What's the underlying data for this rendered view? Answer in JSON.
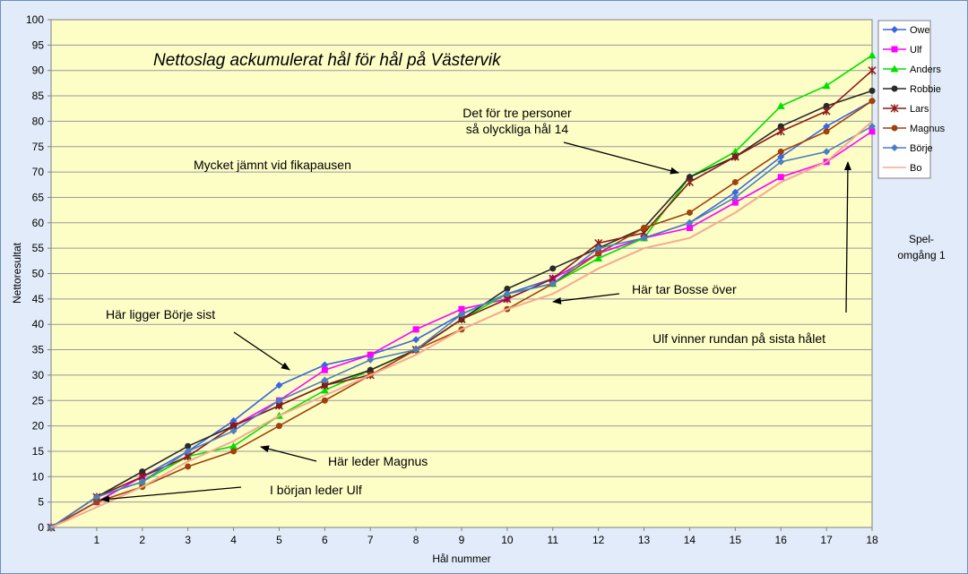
{
  "chart_data": {
    "type": "line",
    "title": "Nettoslag ackumulerat hål för hål på Västervik",
    "xlabel": "Hål nummer",
    "ylabel": "Nettoresultat",
    "x": [
      0,
      1,
      2,
      3,
      4,
      5,
      6,
      7,
      8,
      9,
      10,
      11,
      12,
      13,
      14,
      15,
      16,
      17,
      18
    ],
    "xlim": [
      0,
      18
    ],
    "ylim": [
      0,
      100
    ],
    "ytick_step": 5,
    "grid": "horizontal",
    "legend_position": "right",
    "side_note": [
      "Spel-",
      "omgång 1"
    ],
    "series": [
      {
        "name": "Owe",
        "color": "#3a66e0",
        "marker": "diamond",
        "values": [
          0,
          5,
          10,
          15,
          21,
          28,
          32,
          34,
          37,
          42,
          46,
          49,
          54,
          57,
          60,
          66,
          73,
          79,
          84
        ]
      },
      {
        "name": "Ulf",
        "color": "#ff00ff",
        "marker": "square",
        "values": [
          0,
          5,
          10,
          14,
          20,
          25,
          31,
          34,
          39,
          43,
          45,
          49,
          54,
          57,
          59,
          64,
          69,
          72,
          78
        ]
      },
      {
        "name": "Anders",
        "color": "#00e000",
        "marker": "triangle",
        "values": [
          0,
          6,
          9,
          14,
          16,
          22,
          27,
          31,
          35,
          41,
          46,
          48,
          53,
          57,
          69,
          74,
          83,
          87,
          93
        ]
      },
      {
        "name": "Robbie",
        "color": "#2a2a2a",
        "marker": "circle",
        "values": [
          0,
          6,
          11,
          16,
          20,
          24,
          28,
          31,
          35,
          41,
          47,
          51,
          55,
          59,
          69,
          73,
          79,
          83,
          86
        ]
      },
      {
        "name": "Lars",
        "color": "#8b1a1a",
        "marker": "star",
        "values": [
          0,
          6,
          10,
          14,
          20,
          24,
          28,
          30,
          35,
          41,
          45,
          49,
          56,
          58,
          68,
          73,
          78,
          82,
          90
        ]
      },
      {
        "name": "Magnus",
        "color": "#a0420c",
        "marker": "circle",
        "values": [
          0,
          5,
          8,
          12,
          15,
          20,
          25,
          30,
          35,
          39,
          43,
          48,
          54,
          59,
          62,
          68,
          74,
          78,
          84
        ]
      },
      {
        "name": "Börje",
        "color": "#4a7fbf",
        "marker": "diamond",
        "values": [
          0,
          6,
          9,
          15,
          19,
          25,
          29,
          33,
          35,
          42,
          46,
          48,
          55,
          57,
          60,
          65,
          72,
          74,
          79
        ]
      },
      {
        "name": "Bo",
        "color": "#f5aa90",
        "marker": "none",
        "values": [
          0,
          4,
          8,
          13,
          17,
          22,
          26,
          30,
          34,
          39,
          43,
          46,
          51,
          55,
          57,
          62,
          68,
          72,
          80
        ]
      }
    ],
    "annotations": [
      {
        "id": "jamnt",
        "lines": [
          "Mycket jämnt vid fikapausen"
        ]
      },
      {
        "id": "tre-personer",
        "lines": [
          "Det för tre personer",
          "så olyckliga hål 14"
        ]
      },
      {
        "id": "borje-sist",
        "lines": [
          "Här ligger Börje sist"
        ]
      },
      {
        "id": "bosse",
        "lines": [
          "Här tar Bosse över"
        ]
      },
      {
        "id": "ulf-vinner",
        "lines": [
          "Ulf vinner rundan på sista hålet"
        ]
      },
      {
        "id": "magnus",
        "lines": [
          "Här leder Magnus"
        ]
      },
      {
        "id": "ulf-borjan",
        "lines": [
          "I början leder Ulf"
        ]
      }
    ]
  }
}
